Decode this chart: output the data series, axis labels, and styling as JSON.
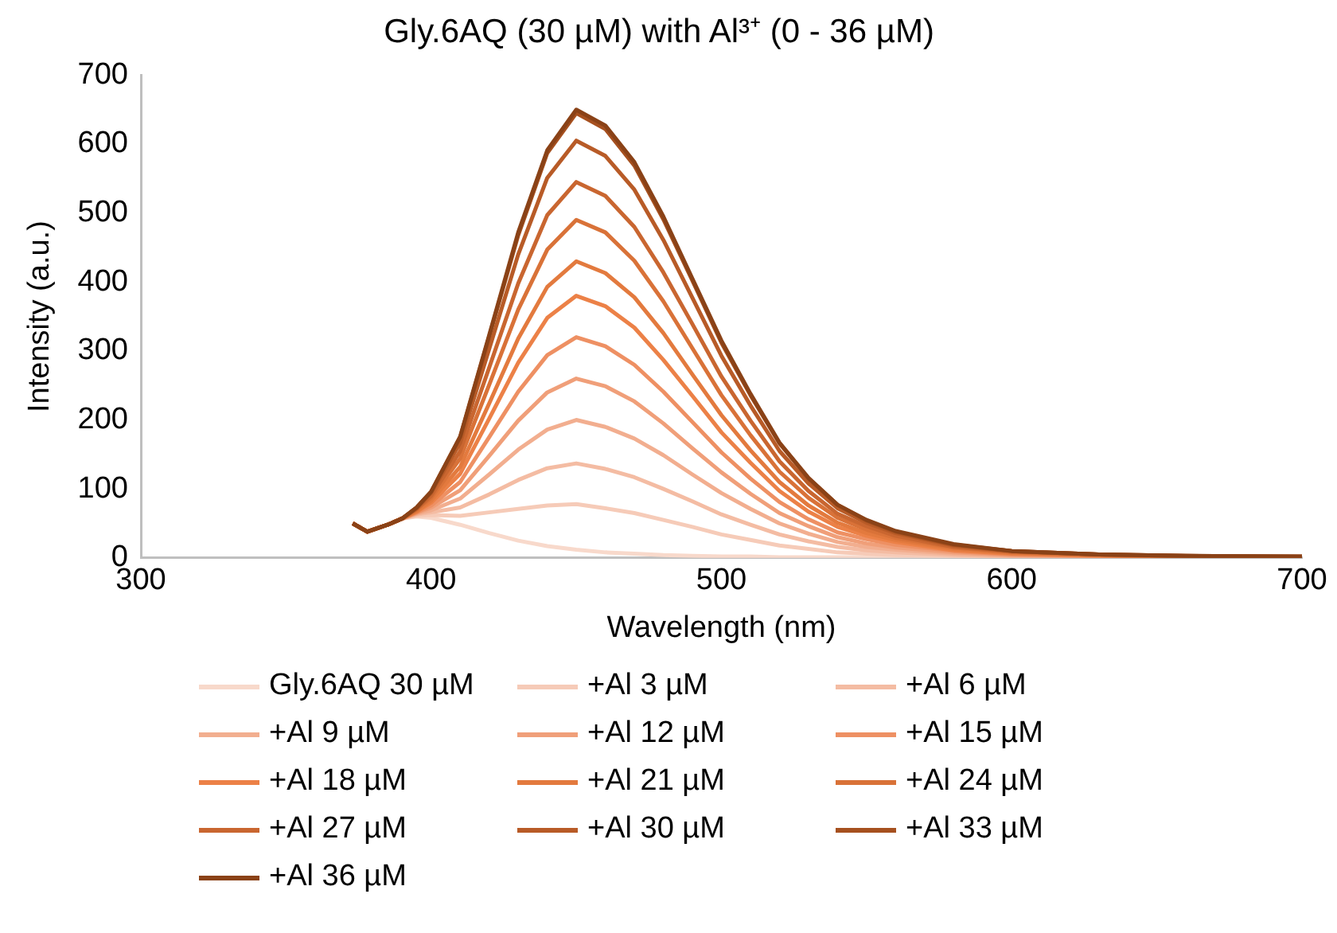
{
  "chart_data": {
    "type": "line",
    "title": "Gly.6AQ (30 µM) with Al³⁺ (0 - 36 µM)",
    "xlabel": "Wavelength (nm)",
    "ylabel": "Intensity (a.u.)",
    "x": [
      373,
      378,
      385,
      390,
      395,
      400,
      410,
      420,
      430,
      440,
      450,
      460,
      470,
      480,
      490,
      500,
      510,
      520,
      530,
      540,
      550,
      560,
      580,
      600,
      630,
      660,
      700
    ],
    "xlim": [
      300,
      700
    ],
    "xticks": [
      300,
      400,
      500,
      600,
      700
    ],
    "ylim": [
      0,
      700
    ],
    "yticks": [
      0,
      100,
      200,
      300,
      400,
      500,
      600,
      700
    ],
    "grid": false,
    "legend": "bottom",
    "marker": "none",
    "line_style": "solid",
    "series": [
      {
        "name": "Gly.6AQ 30 µM",
        "color": "#f8d9cb",
        "values": [
          50,
          38,
          48,
          57,
          60,
          58,
          48,
          36,
          25,
          17,
          12,
          8,
          6,
          4,
          3,
          2,
          2,
          1,
          1,
          1,
          1,
          1,
          1,
          0,
          0,
          0,
          0
        ]
      },
      {
        "name": "+Al 3 µM",
        "color": "#f6cbb8",
        "values": [
          50,
          38,
          48,
          57,
          61,
          62,
          61,
          66,
          71,
          76,
          78,
          72,
          65,
          55,
          45,
          34,
          26,
          18,
          13,
          8,
          6,
          4,
          3,
          1,
          1,
          1,
          0
        ]
      },
      {
        "name": "+Al 6 µM",
        "color": "#f4bca3",
        "values": [
          50,
          38,
          48,
          57,
          63,
          66,
          73,
          92,
          113,
          130,
          137,
          129,
          117,
          100,
          82,
          63,
          48,
          34,
          24,
          16,
          11,
          8,
          4,
          2,
          1,
          1,
          0
        ]
      },
      {
        "name": "+Al 9 µM",
        "color": "#f2ae8f",
        "values": [
          50,
          38,
          48,
          57,
          64,
          69,
          86,
          121,
          157,
          186,
          200,
          190,
          173,
          149,
          121,
          94,
          71,
          50,
          35,
          23,
          16,
          12,
          6,
          3,
          2,
          1,
          1
        ]
      },
      {
        "name": "+Al 12 µM",
        "color": "#f09f79",
        "values": [
          50,
          38,
          48,
          57,
          65,
          73,
          98,
          148,
          199,
          240,
          260,
          249,
          227,
          195,
          159,
          124,
          93,
          65,
          46,
          30,
          21,
          15,
          8,
          4,
          2,
          1,
          1
        ]
      },
      {
        "name": "+Al 15 µM",
        "color": "#ee9063",
        "values": [
          50,
          38,
          48,
          57,
          66,
          76,
          110,
          175,
          241,
          294,
          320,
          307,
          280,
          241,
          197,
          153,
          115,
          81,
          56,
          37,
          27,
          19,
          10,
          5,
          3,
          1,
          1
        ]
      },
      {
        "name": "+Al 18 µM",
        "color": "#ec8147",
        "values": [
          50,
          38,
          48,
          57,
          67,
          80,
          122,
          202,
          283,
          348,
          380,
          365,
          334,
          287,
          235,
          182,
          138,
          97,
          67,
          45,
          32,
          23,
          11,
          6,
          3,
          2,
          1
        ]
      },
      {
        "name": "+Al 21 µM",
        "color": "#e37a3e",
        "values": [
          50,
          38,
          48,
          57,
          68,
          83,
          132,
          224,
          318,
          393,
          430,
          413,
          378,
          326,
          266,
          207,
          156,
          110,
          76,
          51,
          36,
          26,
          13,
          7,
          4,
          2,
          1
        ]
      },
      {
        "name": "+Al 24 µM",
        "color": "#d97238",
        "values": [
          50,
          38,
          48,
          57,
          70,
          87,
          144,
          251,
          360,
          447,
          490,
          472,
          431,
          372,
          304,
          236,
          178,
          125,
          87,
          58,
          41,
          29,
          15,
          8,
          4,
          2,
          1
        ]
      },
      {
        "name": "+Al 27 µM",
        "color": "#c96630",
        "values": [
          50,
          38,
          48,
          57,
          71,
          90,
          155,
          276,
          398,
          497,
          545,
          525,
          480,
          414,
          339,
          263,
          199,
          140,
          97,
          64,
          46,
          32,
          16,
          9,
          5,
          2,
          1
        ]
      },
      {
        "name": "+Al 30 µM",
        "color": "#b85b27",
        "values": [
          50,
          38,
          48,
          57,
          72,
          94,
          167,
          303,
          440,
          551,
          605,
          583,
          534,
          461,
          377,
          293,
          221,
          155,
          108,
          72,
          51,
          36,
          18,
          10,
          5,
          3,
          1
        ]
      },
      {
        "name": "+Al 33 µM",
        "color": "#a6501f",
        "values": [
          50,
          38,
          48,
          57,
          73,
          96,
          175,
          321,
          468,
          587,
          645,
          622,
          569,
          491,
          402,
          312,
          236,
          166,
          115,
          77,
          54,
          38,
          19,
          10,
          5,
          3,
          2
        ]
      },
      {
        "name": "+Al 36 µM",
        "color": "#8a4217",
        "values": [
          50,
          38,
          48,
          57,
          73,
          96,
          176,
          323,
          472,
          591,
          650,
          627,
          574,
          495,
          405,
          315,
          238,
          167,
          116,
          77,
          55,
          39,
          20,
          10,
          5,
          3,
          2
        ]
      }
    ]
  }
}
